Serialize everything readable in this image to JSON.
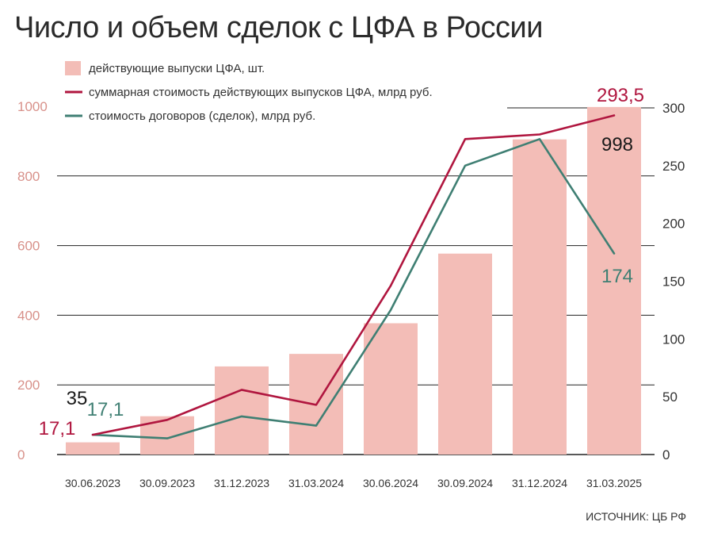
{
  "title": "Число и объем сделок с ЦФА в России",
  "source": "ИСТОЧНИК: ЦБ РФ",
  "colors": {
    "bars": "#f3bdb7",
    "line_total": "#b0163f",
    "line_deals": "#3f7f73",
    "left_axis": "#d8918a"
  },
  "chart_data": {
    "type": "bar",
    "categories": [
      "30.06.2023",
      "30.09.2023",
      "31.12.2023",
      "31.03.2024",
      "30.06.2024",
      "30.09.2024",
      "31.12.2024",
      "31.03.2025"
    ],
    "series": [
      {
        "name": "действующие выпуски ЦФА, шт.",
        "type": "bar",
        "axis": "left",
        "values": [
          35,
          110,
          253,
          289,
          377,
          577,
          905,
          998
        ]
      },
      {
        "name": "суммарная стоимость действующих выпусков ЦФА, млрд руб.",
        "type": "line",
        "axis": "right",
        "values": [
          17.1,
          30,
          56,
          43,
          146,
          273,
          277,
          293.5
        ]
      },
      {
        "name": "стоимость договоров (сделок), млрд руб.",
        "type": "line",
        "axis": "right",
        "values": [
          17.1,
          14,
          33,
          25,
          125,
          250,
          273,
          174
        ]
      }
    ],
    "left_axis": {
      "ticks": [
        "0",
        "200",
        "400",
        "600",
        "800",
        "1000"
      ],
      "range": [
        0,
        1000
      ]
    },
    "right_axis": {
      "ticks": [
        "0",
        "50",
        "100",
        "150",
        "200",
        "250",
        "300"
      ],
      "range": [
        0,
        300
      ]
    },
    "data_labels": [
      {
        "text": "35",
        "series": 0,
        "index": 0
      },
      {
        "text": "17,1",
        "series": 1,
        "index": 0
      },
      {
        "text": "17,1",
        "series": 2,
        "index": 0
      },
      {
        "text": "998",
        "series": 0,
        "index": 7
      },
      {
        "text": "293,5",
        "series": 1,
        "index": 7
      },
      {
        "text": "174",
        "series": 2,
        "index": 7
      }
    ],
    "grid": true,
    "legend_position": "top-left"
  }
}
